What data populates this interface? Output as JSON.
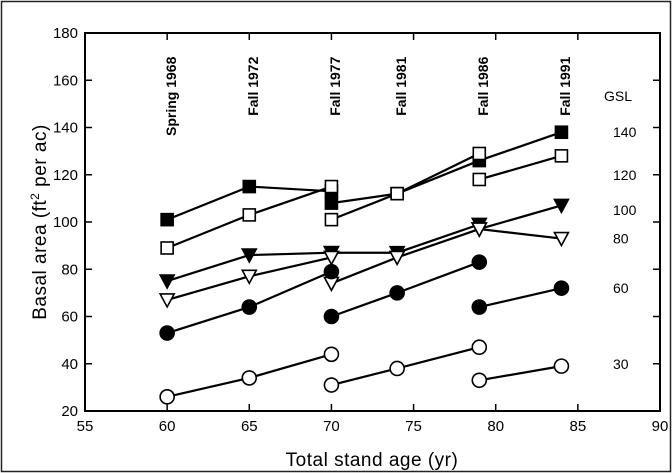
{
  "chart_data": {
    "type": "line",
    "title": "",
    "xlabel": "Total stand age (yr)",
    "ylabel_main": "Basal area (ft",
    "ylabel_sup": "2",
    "ylabel_tail": " per ac)",
    "xlim": [
      55,
      90
    ],
    "ylim": [
      20,
      180
    ],
    "x_ticks": [
      55,
      60,
      65,
      70,
      75,
      80,
      85,
      90
    ],
    "y_ticks": [
      20,
      40,
      60,
      80,
      100,
      120,
      140,
      160,
      180
    ],
    "grid": false,
    "gsl_header": "GSL",
    "annotations": [
      {
        "text": "Spring 1968",
        "x": 60,
        "y": 170
      },
      {
        "text": "Fall 1972",
        "x": 65,
        "y": 170
      },
      {
        "text": "Fall 1977",
        "x": 70,
        "y": 170
      },
      {
        "text": "Fall 1981",
        "x": 74,
        "y": 170
      },
      {
        "text": "Fall 1986",
        "x": 79,
        "y": 170
      },
      {
        "text": "Fall 1991",
        "x": 84,
        "y": 170
      }
    ],
    "series": [
      {
        "gsl": "140",
        "marker": "square",
        "filled": true,
        "segments": [
          [
            [
              60,
              101
            ],
            [
              65,
              115
            ],
            [
              70,
              113
            ]
          ],
          [
            [
              70,
              108
            ],
            [
              74,
              112
            ],
            [
              79,
              126
            ],
            [
              84,
              138
            ]
          ]
        ]
      },
      {
        "gsl": "120",
        "marker": "square",
        "filled": false,
        "segments": [
          [
            [
              60,
              89
            ],
            [
              65,
              103
            ],
            [
              70,
              115
            ]
          ],
          [
            [
              70,
              101
            ],
            [
              74,
              112
            ],
            [
              79,
              129
            ]
          ],
          [
            [
              79,
              118
            ],
            [
              84,
              128
            ]
          ]
        ]
      },
      {
        "gsl": "100",
        "marker": "triangle-down",
        "filled": true,
        "segments": [
          [
            [
              60,
              75
            ],
            [
              65,
              86
            ],
            [
              70,
              87
            ]
          ],
          [
            [
              70,
              87
            ],
            [
              74,
              87
            ],
            [
              79,
              99
            ]
          ],
          [
            [
              79,
              97
            ],
            [
              84,
              107
            ]
          ]
        ]
      },
      {
        "gsl": "80",
        "marker": "triangle-down",
        "filled": false,
        "segments": [
          [
            [
              60,
              67
            ],
            [
              65,
              77
            ],
            [
              70,
              85
            ]
          ],
          [
            [
              70,
              74
            ],
            [
              74,
              85
            ],
            [
              79,
              97
            ]
          ],
          [
            [
              79,
              97
            ],
            [
              84,
              93
            ]
          ]
        ]
      },
      {
        "gsl": "60",
        "marker": "circle",
        "filled": true,
        "segments": [
          [
            [
              60,
              53
            ],
            [
              65,
              64
            ],
            [
              70,
              79
            ]
          ],
          [
            [
              70,
              60
            ],
            [
              74,
              70
            ],
            [
              79,
              83
            ]
          ],
          [
            [
              79,
              64
            ],
            [
              84,
              72
            ]
          ]
        ]
      },
      {
        "gsl": "30",
        "marker": "circle",
        "filled": false,
        "segments": [
          [
            [
              60,
              26
            ],
            [
              65,
              34
            ],
            [
              70,
              44
            ]
          ],
          [
            [
              70,
              31
            ],
            [
              74,
              38
            ],
            [
              79,
              47
            ]
          ],
          [
            [
              79,
              33
            ],
            [
              84,
              39
            ]
          ]
        ]
      }
    ],
    "gsl_positions": [
      {
        "label": "140",
        "y": 138
      },
      {
        "label": "120",
        "y": 120
      },
      {
        "label": "100",
        "y": 105
      },
      {
        "label": "80",
        "y": 93
      },
      {
        "label": "60",
        "y": 72
      },
      {
        "label": "30",
        "y": 40
      }
    ]
  }
}
